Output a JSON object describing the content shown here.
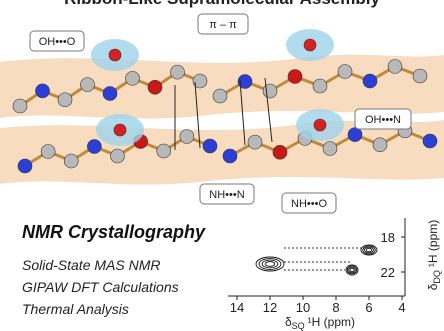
{
  "header": {
    "title": "Ribbon-Like Supramolecular Assembly"
  },
  "labels": {
    "oh_o": "OH•••O",
    "pi_pi": "π – π",
    "oh_n": "OH•••N",
    "nh_n": "NH•••N",
    "nh_o": "NH•••O"
  },
  "heading": "NMR Crystallography",
  "methods": [
    "Solid-State  MAS NMR",
    "GIPAW DFT Calculations",
    "Thermal Analysis"
  ],
  "spectrum": {
    "x_label": {
      "symbol": "δ",
      "subscript": "SQ",
      "text": "¹H (ppm)"
    },
    "y_label": {
      "symbol": "δ",
      "subscript": "DQ",
      "text": "¹H (ppm)"
    },
    "xticks": [
      14,
      12,
      10,
      8,
      6,
      4
    ],
    "yticks": [
      18,
      22
    ]
  }
}
